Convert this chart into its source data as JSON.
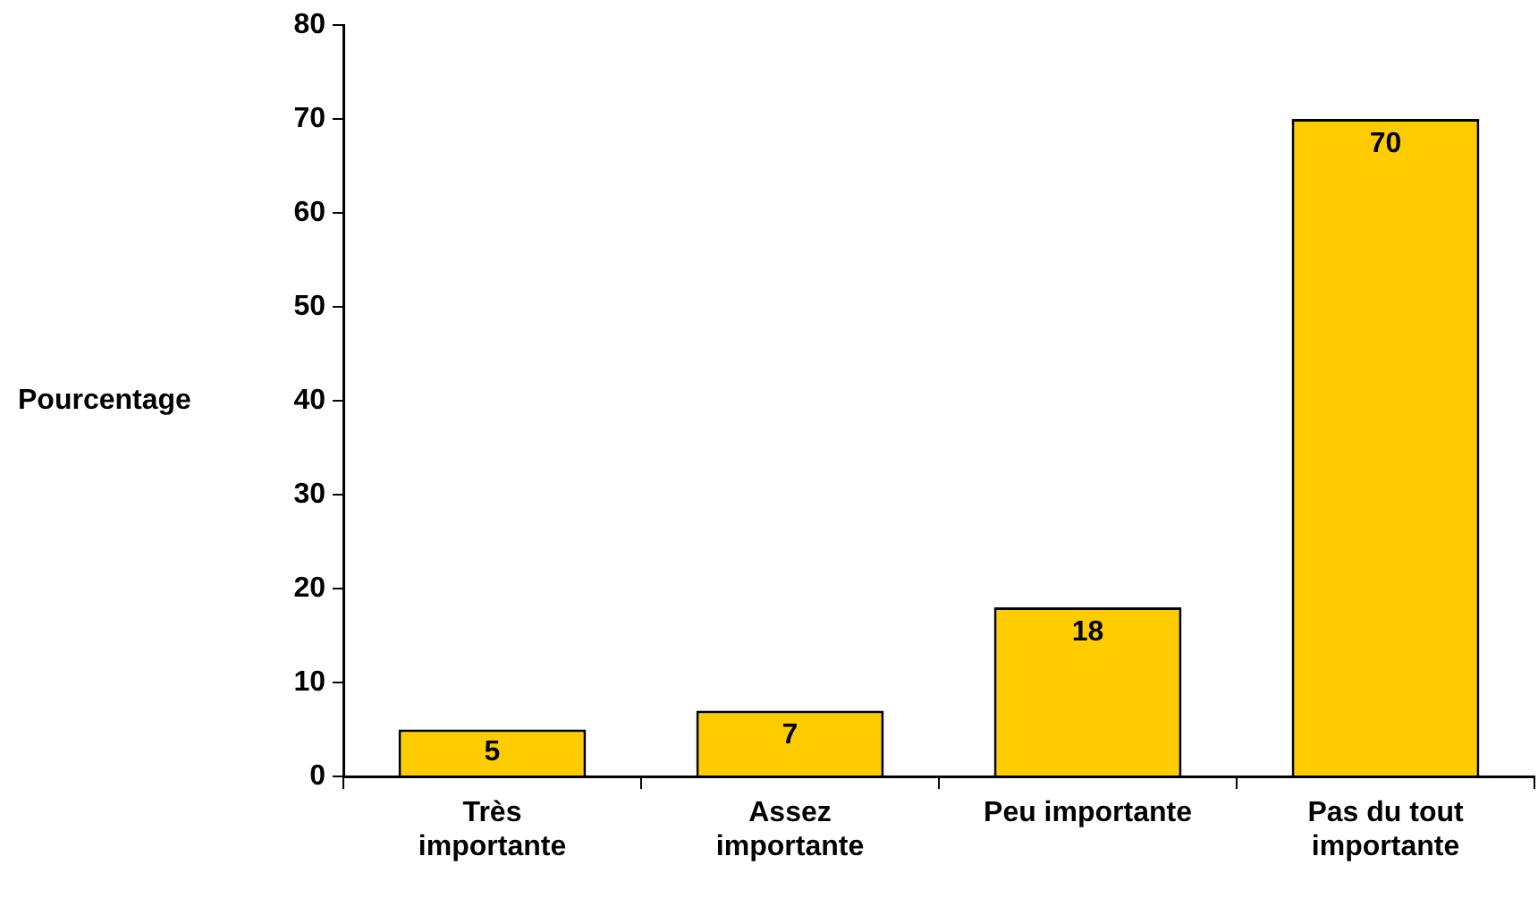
{
  "chart_data": {
    "type": "bar",
    "ylabel": "Pourcentage",
    "categories": [
      "Très\nimportante",
      "Assez\nimportante",
      "Peu importante",
      "Pas du tout\nimportante"
    ],
    "values": [
      5,
      7,
      18,
      70
    ],
    "color": "#ffcc00",
    "ylim": [
      0,
      80
    ],
    "yticks": [
      0,
      10,
      20,
      30,
      40,
      50,
      60,
      70,
      80
    ],
    "data_labels": true
  }
}
